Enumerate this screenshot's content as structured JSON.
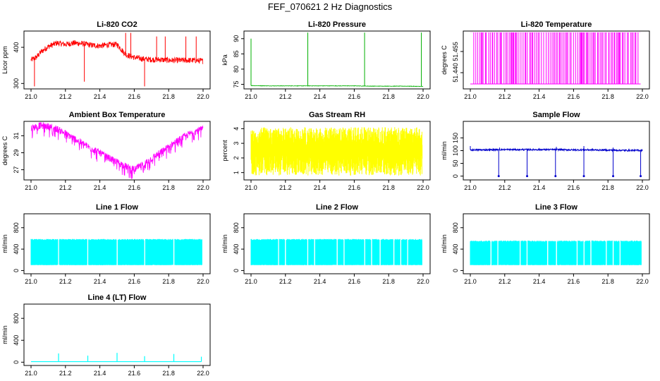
{
  "figure": {
    "title": "FEF_070621  2 Hz Diagnostics"
  },
  "chart_data": [
    {
      "type": "line",
      "title": "Li-820 CO2",
      "xlabel": "",
      "ylabel": "Licor ppm",
      "color": "#ff0000",
      "xlim": [
        21.0,
        22.0
      ],
      "ylim": [
        285,
        445
      ],
      "xticks": [
        "21.0",
        "21.2",
        "21.4",
        "21.6",
        "21.8",
        "22.0"
      ],
      "yticks": [
        300,
        400
      ],
      "series": [
        {
          "x": [
            21.0,
            21.03,
            21.06,
            21.1,
            21.15,
            21.2,
            21.25,
            21.3,
            21.35,
            21.4,
            21.45,
            21.5,
            21.55,
            21.6,
            21.65,
            21.7,
            21.75,
            21.8,
            21.85,
            21.9,
            21.95,
            22.0
          ],
          "y": [
            365,
            372,
            388,
            402,
            412,
            408,
            412,
            410,
            406,
            404,
            407,
            408,
            380,
            372,
            368,
            366,
            366,
            364,
            364,
            364,
            364,
            362
          ],
          "spikes": [
            {
              "x": 21.02,
              "y": 292
            },
            {
              "x": 21.31,
              "y": 305
            },
            {
              "x": 21.55,
              "y": 440
            },
            {
              "x": 21.58,
              "y": 440
            },
            {
              "x": 21.66,
              "y": 292
            },
            {
              "x": 21.73,
              "y": 430
            },
            {
              "x": 21.78,
              "y": 430
            },
            {
              "x": 21.9,
              "y": 430
            },
            {
              "x": 21.96,
              "y": 430
            }
          ]
        }
      ]
    },
    {
      "type": "line",
      "title": "Li-820 Pressure",
      "xlabel": "",
      "ylabel": "kPa",
      "color": "#00b000",
      "xlim": [
        21.0,
        22.0
      ],
      "ylim": [
        73.5,
        92.5
      ],
      "xticks": [
        "21.0",
        "21.2",
        "21.4",
        "21.6",
        "21.8",
        "22.0"
      ],
      "yticks": [
        75,
        80,
        85,
        90
      ],
      "series": [
        {
          "x": [
            21.0,
            21.1,
            21.2,
            21.3,
            21.4,
            21.5,
            21.6,
            21.7,
            21.8,
            21.9,
            22.0
          ],
          "y": [
            74.6,
            74.5,
            74.5,
            74.5,
            74.5,
            74.5,
            74.5,
            74.4,
            74.4,
            74.4,
            74.3
          ],
          "spikes": [
            {
              "x": 21.0,
              "y": 90
            },
            {
              "x": 21.33,
              "y": 92
            },
            {
              "x": 21.66,
              "y": 92
            },
            {
              "x": 21.99,
              "y": 92
            }
          ]
        }
      ]
    },
    {
      "type": "line",
      "title": "Li-820 Temperature",
      "xlabel": "",
      "ylabel": "degrees C",
      "color": "#ff00ff",
      "xlim": [
        21.0,
        22.0
      ],
      "ylim": [
        51.4285,
        51.4695
      ],
      "xticks": [
        "21.0",
        "21.2",
        "21.4",
        "21.6",
        "21.8",
        "22.0"
      ],
      "yticks": [
        51.44,
        51.455
      ],
      "ytick_labels": [
        "51.440",
        "51.455"
      ],
      "series": [
        {
          "baseline": 51.432,
          "upper": 51.4685,
          "switching_from": 21.0,
          "switching_to": 21.98
        }
      ]
    },
    {
      "type": "line",
      "title": "Ambient Box Temperature",
      "xlabel": "",
      "ylabel": "degrees C",
      "color": "#ff00ff",
      "xlim": [
        21.0,
        22.0
      ],
      "ylim": [
        25.8,
        32.7
      ],
      "xticks": [
        "21.0",
        "21.2",
        "21.4",
        "21.6",
        "21.8",
        "22.0"
      ],
      "yticks": [
        27,
        29,
        31
      ],
      "series": [
        {
          "x": [
            21.0,
            21.05,
            21.1,
            21.15,
            21.2,
            21.25,
            21.3,
            21.35,
            21.4,
            21.45,
            21.5,
            21.55,
            21.6,
            21.65,
            21.7,
            21.75,
            21.8,
            21.85,
            21.9,
            21.95,
            22.0
          ],
          "y": [
            31.9,
            32.2,
            32.1,
            31.8,
            31.3,
            30.7,
            30.1,
            29.5,
            29.0,
            28.4,
            27.9,
            27.4,
            27.0,
            27.6,
            28.3,
            29.0,
            29.7,
            30.4,
            31.0,
            31.5,
            31.8
          ]
        }
      ]
    },
    {
      "type": "line",
      "title": "Gas Stream RH",
      "xlabel": "",
      "ylabel": "percent",
      "color": "#ffff00",
      "xlim": [
        21.0,
        22.0
      ],
      "ylim": [
        0.5,
        4.5
      ],
      "xticks": [
        "21.0",
        "21.2",
        "21.4",
        "21.6",
        "21.8",
        "22.0"
      ],
      "yticks": [
        1,
        2,
        3,
        4
      ],
      "series": [
        {
          "low": 0.8,
          "high": 4.1
        }
      ]
    },
    {
      "type": "line",
      "title": "Sample Flow",
      "xlabel": "",
      "ylabel": "ml/min",
      "color": "#0000cc",
      "xlim": [
        21.0,
        22.0
      ],
      "ylim": [
        -15,
        215
      ],
      "xticks": [
        "21.0",
        "21.2",
        "21.4",
        "21.6",
        "21.8",
        "22.0"
      ],
      "yticks": [
        0,
        50,
        100,
        150
      ],
      "series": [
        {
          "x": [
            21.0,
            21.1,
            21.2,
            21.3,
            21.4,
            21.5,
            21.6,
            21.7,
            21.8,
            21.9,
            22.0
          ],
          "y": [
            103,
            103,
            104,
            104,
            104,
            104,
            103,
            103,
            102,
            101,
            101
          ],
          "drops": [
            21.165,
            21.33,
            21.495,
            21.66,
            21.83,
            21.99
          ],
          "peaks": [
            {
              "x": 21.0,
              "y": 118
            },
            {
              "x": 21.17,
              "y": 112
            },
            {
              "x": 21.5,
              "y": 115
            },
            {
              "x": 21.66,
              "y": 118
            },
            {
              "x": 21.83,
              "y": 112
            }
          ]
        }
      ]
    },
    {
      "type": "line",
      "title": "Line 1 Flow",
      "xlabel": "",
      "ylabel": "ml/min",
      "color": "#00ffff",
      "xlim": [
        21.0,
        22.0
      ],
      "ylim": [
        -60,
        1060
      ],
      "xticks": [
        "21.0",
        "21.2",
        "21.4",
        "21.6",
        "21.8",
        "22.0"
      ],
      "yticks": [
        0,
        400,
        800
      ],
      "series": [
        {
          "low": 100,
          "high": 590,
          "gaps": [
            21.16,
            21.33,
            21.5,
            21.66,
            21.83
          ]
        }
      ]
    },
    {
      "type": "line",
      "title": "Line 2 Flow",
      "xlabel": "",
      "ylabel": "ml/min",
      "color": "#00ffff",
      "xlim": [
        21.0,
        22.0
      ],
      "ylim": [
        -60,
        1060
      ],
      "xticks": [
        "21.0",
        "21.2",
        "21.4",
        "21.6",
        "21.8",
        "22.0"
      ],
      "yticks": [
        0,
        400,
        800
      ],
      "series": [
        {
          "low": 100,
          "high": 590,
          "gaps": [
            21.16,
            21.2,
            21.33,
            21.37,
            21.5,
            21.54,
            21.66,
            21.7,
            21.75,
            21.83,
            21.87,
            21.91
          ]
        }
      ]
    },
    {
      "type": "line",
      "title": "Line 3 Flow",
      "xlabel": "",
      "ylabel": "ml/min",
      "color": "#00ffff",
      "xlim": [
        21.0,
        22.0
      ],
      "ylim": [
        -60,
        1060
      ],
      "xticks": [
        "21.0",
        "21.2",
        "21.4",
        "21.6",
        "21.8",
        "22.0"
      ],
      "yticks": [
        0,
        400,
        800
      ],
      "series": [
        {
          "low": 100,
          "high": 560,
          "gaps": [
            21.12,
            21.16,
            21.29,
            21.33,
            21.45,
            21.5,
            21.62,
            21.66,
            21.7,
            21.79,
            21.83,
            21.87
          ]
        }
      ]
    },
    {
      "type": "line",
      "title": "Line 4 (LT) Flow",
      "xlabel": "",
      "ylabel": "ml/min",
      "color": "#00ffff",
      "xlim": [
        21.0,
        22.0
      ],
      "ylim": [
        -60,
        1060
      ],
      "xticks": [
        "21.0",
        "21.2",
        "21.4",
        "21.6",
        "21.8",
        "22.0"
      ],
      "yticks": [
        0,
        400,
        800
      ],
      "series": [
        {
          "baseline": 10,
          "spikes": [
            {
              "x": 21.16,
              "y": 160
            },
            {
              "x": 21.33,
              "y": 120
            },
            {
              "x": 21.5,
              "y": 170
            },
            {
              "x": 21.66,
              "y": 110
            },
            {
              "x": 21.83,
              "y": 150
            },
            {
              "x": 21.99,
              "y": 100
            }
          ]
        }
      ]
    }
  ]
}
